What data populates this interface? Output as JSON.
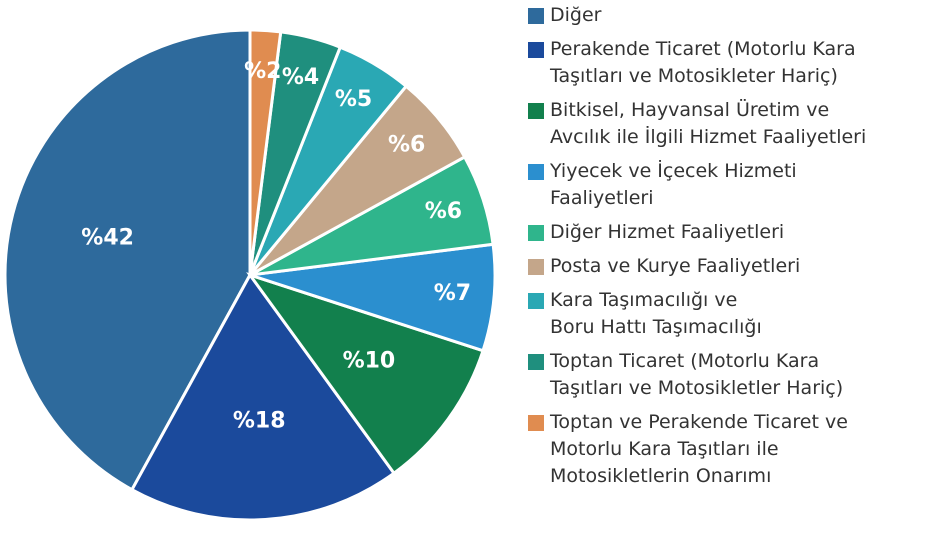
{
  "chart_data": {
    "type": "pie",
    "categories": [
      "Diğer",
      "Perakende Ticaret (Motorlu Kara\nTaşıtları ve Motosikleter Hariç)",
      "Bitkisel, Hayvansal Üretim ve\nAvcılık ile İlgili Hizmet Faaliyetleri",
      "Yiyecek ve İçecek Hizmeti\nFaaliyetleri",
      "Diğer Hizmet Faaliyetleri",
      "Posta ve Kurye Faaliyetleri",
      "Kara Taşımacılığı ve\nBoru Hattı Taşımacılığı",
      "Toptan Ticaret (Motorlu Kara\nTaşıtları ve Motosikletler Hariç)",
      "Toptan ve Perakende Ticaret ve\nMotorlu Kara Taşıtları ile\nMotosikletlerin Onarımı"
    ],
    "values": [
      42,
      18,
      10,
      7,
      6,
      6,
      5,
      4,
      2
    ],
    "value_labels": [
      "%42",
      "%18",
      "%10",
      "%7",
      "%6",
      "%6",
      "%5",
      "%4",
      "%2"
    ],
    "colors": [
      "#2e6a9c",
      "#1b4a9c",
      "#12804d",
      "#2b8fcf",
      "#2fb58c",
      "#c4a68a",
      "#2aa8b4",
      "#1f8f7e",
      "#e08c50"
    ],
    "legend": "right"
  }
}
